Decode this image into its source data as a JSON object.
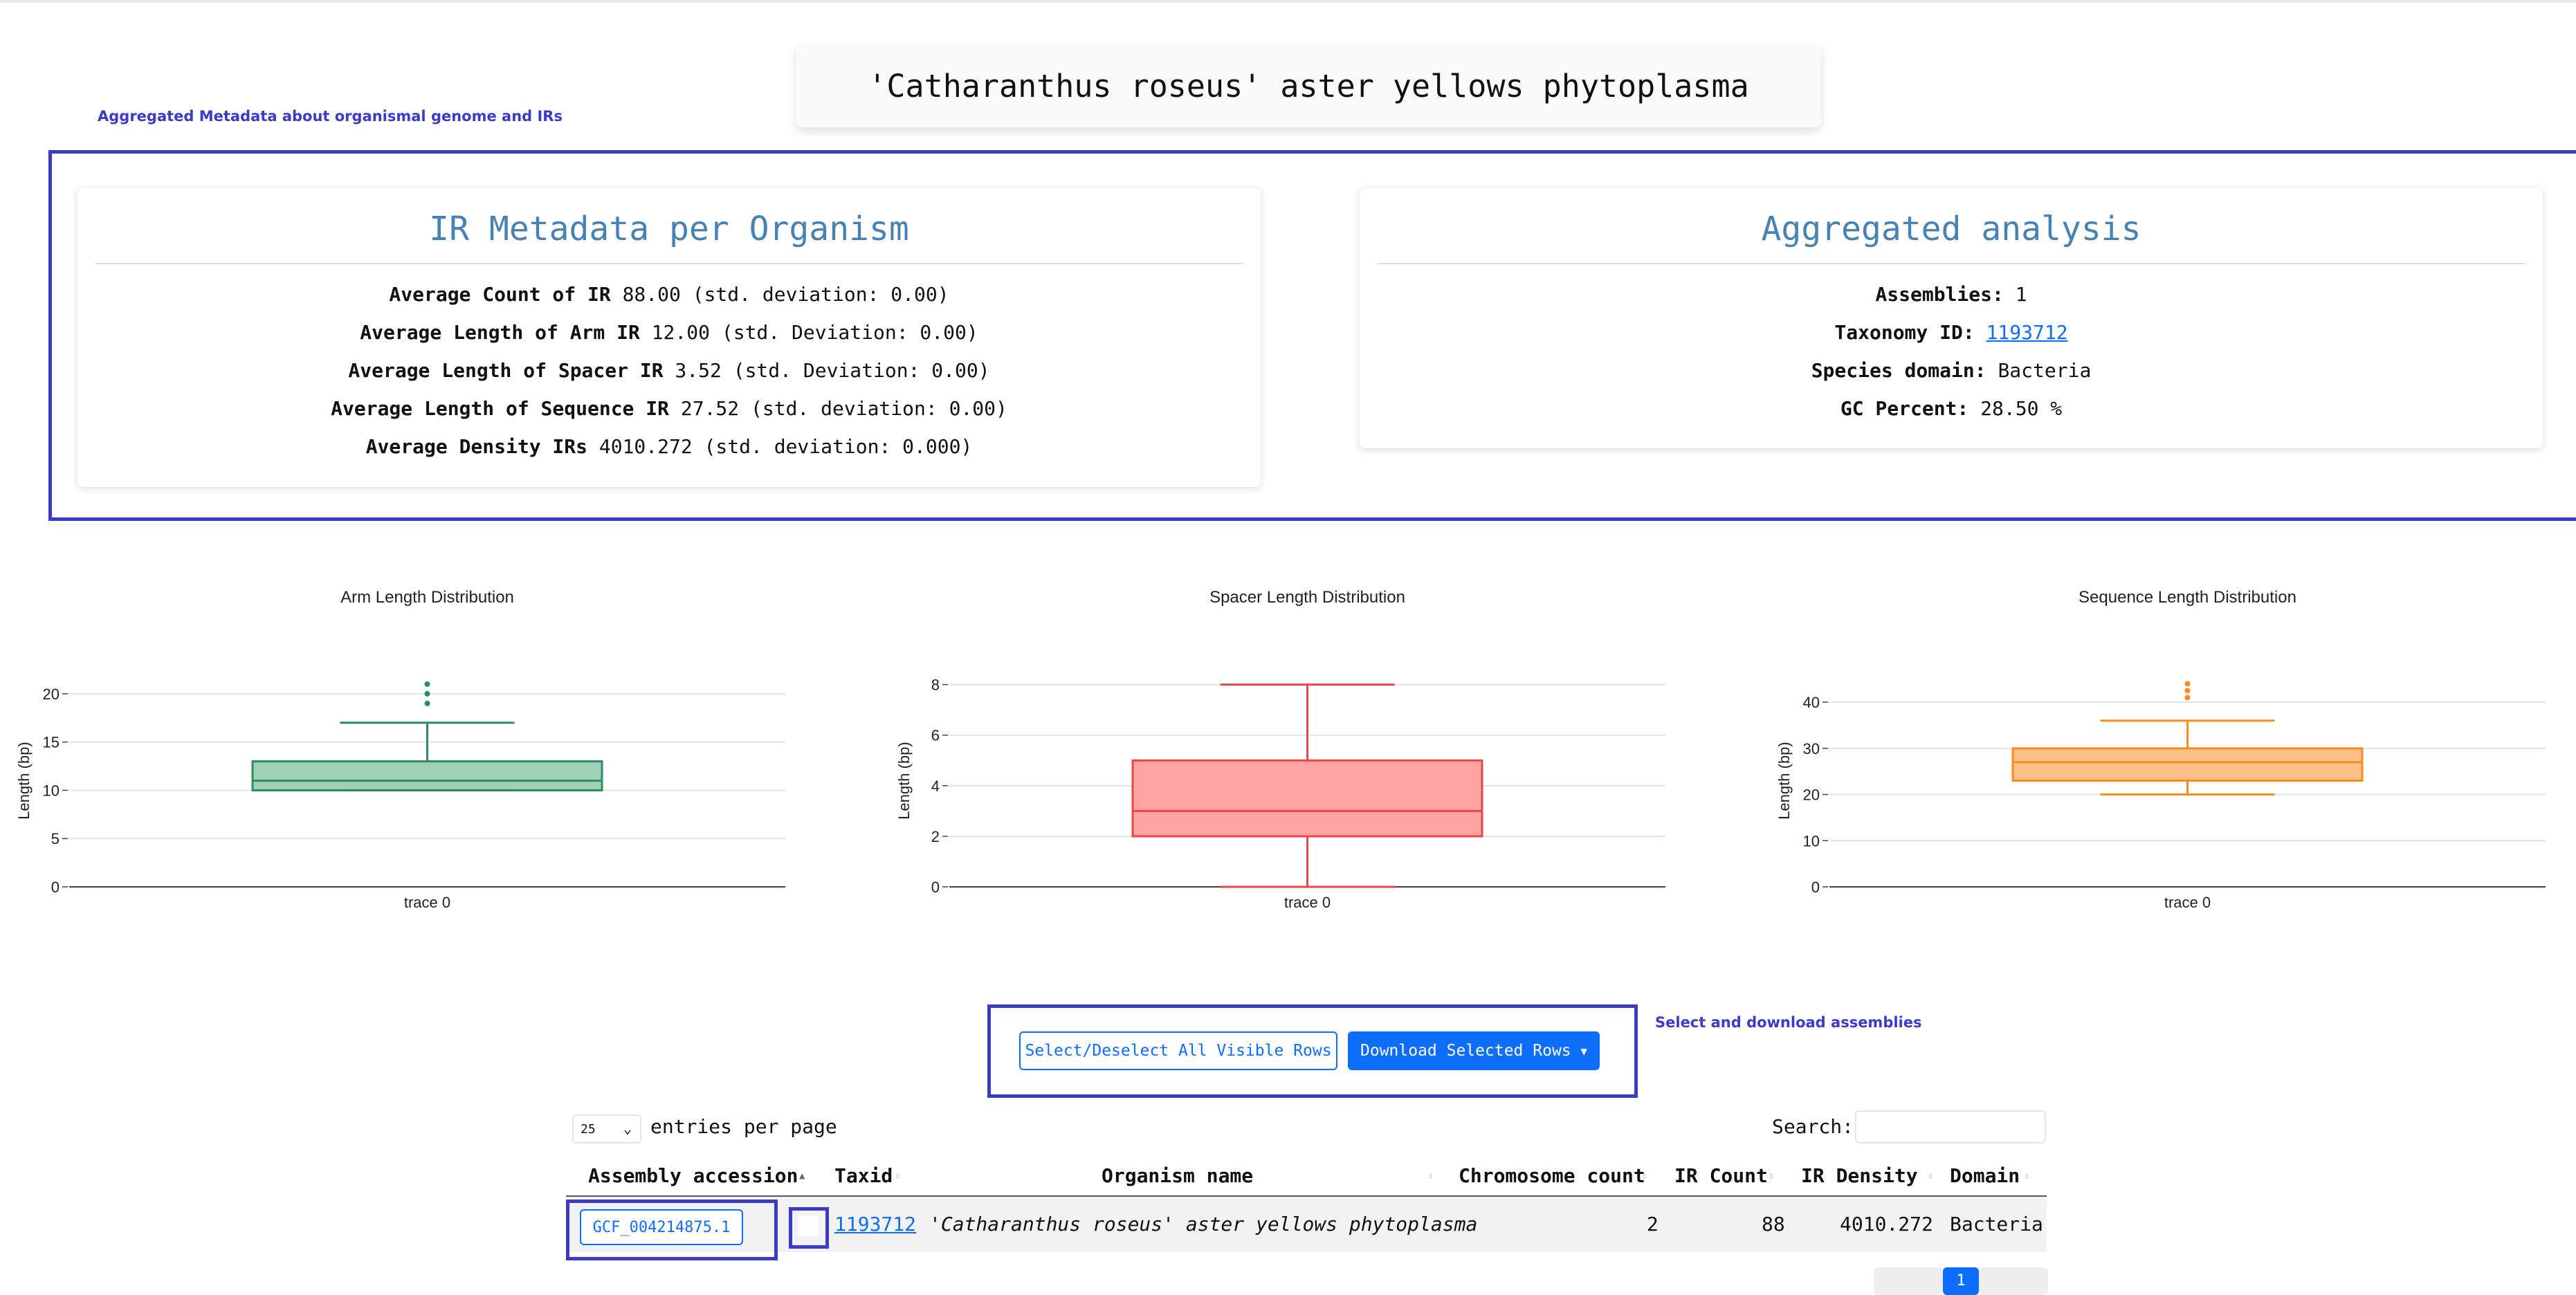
{
  "page": {
    "title": "'Catharanthus roseus' aster yellows phytoplasma",
    "metadata_annotation": "Aggregated Metadata about organismal genome and IRs"
  },
  "ir_metadata": {
    "heading": "IR Metadata per Organism",
    "rows": [
      {
        "label": "Average Count of IR",
        "value": "88.00 (std. deviation: 0.00)"
      },
      {
        "label": "Average Length of Arm IR",
        "value": "12.00 (std. Deviation: 0.00)"
      },
      {
        "label": "Average Length of Spacer IR",
        "value": "3.52 (std. Deviation: 0.00)"
      },
      {
        "label": "Average Length of Sequence IR",
        "value": "27.52 (std. deviation: 0.00)"
      },
      {
        "label": "Average Density IRs",
        "value": "4010.272 (std. deviation: 0.000)"
      }
    ]
  },
  "aggregated": {
    "heading": "Aggregated analysis",
    "assemblies_label": "Assemblies:",
    "assemblies_value": "1",
    "taxonomy_label": "Taxonomy ID:",
    "taxonomy_value": "1193712",
    "domain_label": "Species domain:",
    "domain_value": "Bacteria",
    "gc_label": "GC Percent:",
    "gc_value": "28.50 %"
  },
  "chart_data": [
    {
      "type": "box",
      "title": "Arm Length Distribution",
      "ylabel": "Length (bp)",
      "category": "trace 0",
      "ylim": [
        0,
        22
      ],
      "yticks": [
        0,
        5,
        10,
        15,
        20
      ],
      "min": 10,
      "q1": 10,
      "median": 11,
      "q3": 13,
      "max": 17,
      "outliers": [
        19,
        20,
        21
      ],
      "color": "#2e8b62",
      "fill": "#9fd1b6"
    },
    {
      "type": "box",
      "title": "Spacer Length Distribution",
      "ylabel": "Length (bp)",
      "category": "trace 0",
      "ylim": [
        0,
        8.4
      ],
      "yticks": [
        0,
        2,
        4,
        6,
        8
      ],
      "min": 0,
      "q1": 2,
      "median": 3,
      "q3": 5,
      "max": 8,
      "outliers": [],
      "color": "#e8474b",
      "fill": "#ffa3a3"
    },
    {
      "type": "box",
      "title": "Sequence Length Distribution",
      "ylabel": "Length (bp)",
      "category": "trace 0",
      "ylim": [
        0,
        46
      ],
      "yticks": [
        0,
        10,
        20,
        30,
        40
      ],
      "min": 20,
      "q1": 23,
      "median": 27,
      "q3": 30,
      "max": 36,
      "outliers": [
        41,
        42.5,
        44
      ],
      "color": "#ff8c1a",
      "fill": "#ffc08a"
    }
  ],
  "controls": {
    "select_all_label": "Select/Deselect All Visible Rows",
    "download_label": "Download Selected Rows",
    "annotation": "Select and download assemblies"
  },
  "table": {
    "entries_value": "25",
    "entries_label": "entries per page",
    "search_label": "Search:",
    "columns": [
      "Assembly accession",
      "Taxid",
      "Organism name",
      "Chromosome count",
      "IR Count",
      "IR Density",
      "Domain"
    ],
    "row": {
      "accession": "GCF_004214875.1",
      "taxid": "1193712",
      "organism": "'Catharanthus roseus' aster yellows phytoplasma",
      "chromosome_count": "2",
      "ir_count": "88",
      "ir_density": "4010.272",
      "domain": "Bacteria"
    },
    "current_page": "1"
  }
}
